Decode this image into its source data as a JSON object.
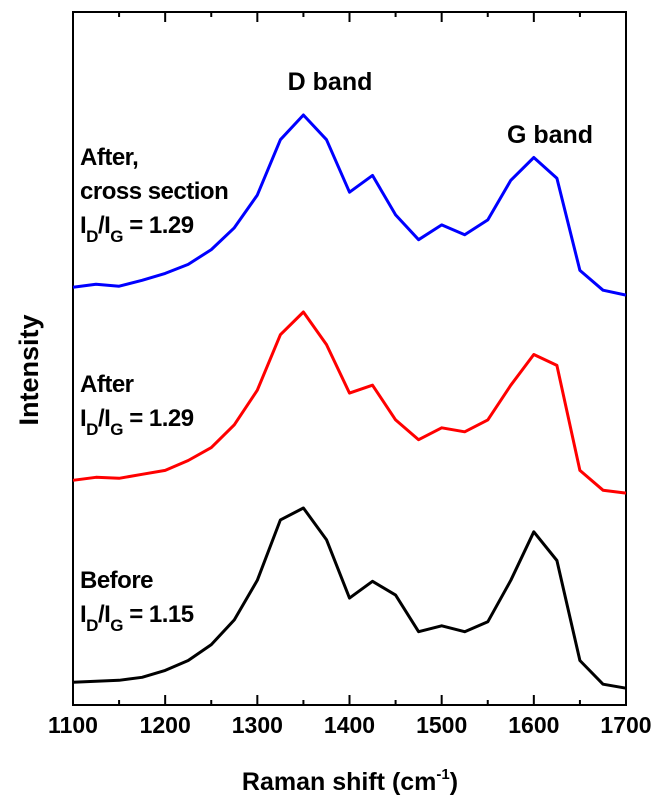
{
  "chart_data": {
    "type": "line",
    "x_label": [
      "Raman shift (cm",
      "-1",
      ")"
    ],
    "y_label": "Intensity",
    "x": [
      1100,
      1125,
      1150,
      1175,
      1200,
      1225,
      1250,
      1275,
      1300,
      1325,
      1350,
      1375,
      1400,
      1425,
      1450,
      1475,
      1500,
      1525,
      1550,
      1575,
      1600,
      1625,
      1650,
      1675,
      1700
    ],
    "series": [
      {
        "color": "#000000",
        "values": [
          0.23,
          0.24,
          0.25,
          0.28,
          0.35,
          0.45,
          0.61,
          0.86,
          1.26,
          1.87,
          1.99,
          1.67,
          1.08,
          1.25,
          1.11,
          0.74,
          0.8,
          0.74,
          0.84,
          1.26,
          1.75,
          1.46,
          0.45,
          0.21,
          0.17
        ]
      },
      {
        "color": "#ff0000",
        "values": [
          2.27,
          2.3,
          2.29,
          2.33,
          2.37,
          2.47,
          2.6,
          2.83,
          3.18,
          3.74,
          3.97,
          3.64,
          3.15,
          3.23,
          2.88,
          2.68,
          2.8,
          2.76,
          2.88,
          3.23,
          3.54,
          3.43,
          2.37,
          2.17,
          2.14
        ]
      },
      {
        "color": "#0000ff",
        "values": [
          4.22,
          4.25,
          4.23,
          4.29,
          4.36,
          4.45,
          4.6,
          4.82,
          5.15,
          5.71,
          5.96,
          5.71,
          5.18,
          5.35,
          4.95,
          4.7,
          4.85,
          4.75,
          4.9,
          5.3,
          5.53,
          5.32,
          4.39,
          4.19,
          4.14
        ]
      }
    ],
    "xlim": [
      1100,
      1700
    ],
    "xticks": [
      1100,
      1200,
      1300,
      1400,
      1500,
      1600,
      1700
    ],
    "xminorticks": [
      1150,
      1250,
      1350,
      1450,
      1550,
      1650
    ],
    "ylim": [
      0,
      7
    ],
    "annotations": [
      {
        "text": "D band"
      },
      {
        "text": "G band"
      },
      {
        "lines": [
          "After,",
          "cross section"
        ],
        "ratio": [
          "I",
          "D",
          "/I",
          "G",
          " = 1.29"
        ]
      },
      {
        "lines": [
          "After"
        ],
        "ratio": [
          "I",
          "D",
          "/I",
          "G",
          " = 1.29"
        ]
      },
      {
        "lines": [
          "Before"
        ],
        "ratio": [
          "I",
          "D",
          "/I",
          "G",
          " = 1.15"
        ]
      }
    ]
  }
}
